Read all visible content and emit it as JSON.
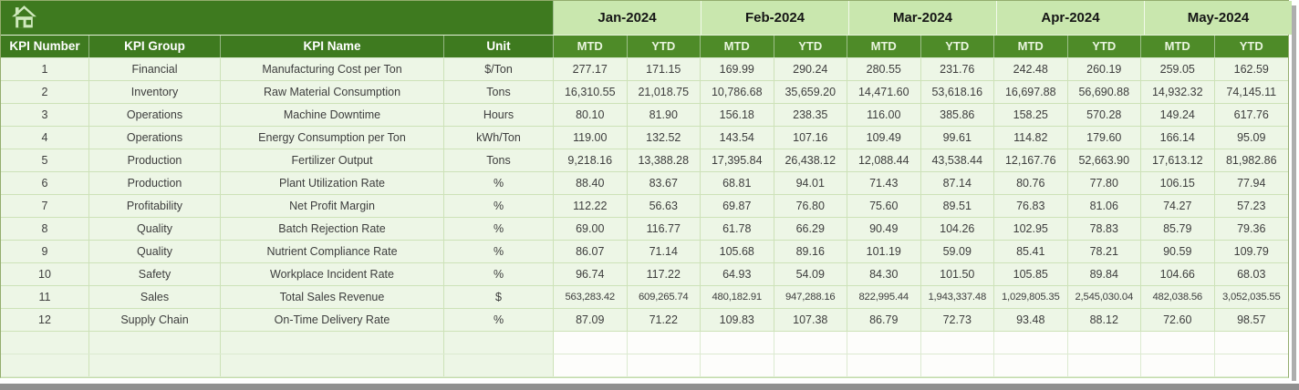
{
  "table": {
    "corner_headers": [
      "KPI Number",
      "KPI Group",
      "KPI Name",
      "Unit"
    ],
    "months": [
      "Jan-2024",
      "Feb-2024",
      "Mar-2024",
      "Apr-2024",
      "May-2024"
    ],
    "sub_headers": [
      "MTD",
      "YTD"
    ],
    "rows": [
      {
        "kpi_number": "1",
        "kpi_group": "Financial",
        "kpi_name": "Manufacturing Cost per Ton",
        "unit": "$/Ton",
        "values": [
          "277.17",
          "171.15",
          "169.99",
          "290.24",
          "280.55",
          "231.76",
          "242.48",
          "260.19",
          "259.05",
          "162.59"
        ]
      },
      {
        "kpi_number": "2",
        "kpi_group": "Inventory",
        "kpi_name": "Raw Material Consumption",
        "unit": "Tons",
        "values": [
          "16,310.55",
          "21,018.75",
          "10,786.68",
          "35,659.20",
          "14,471.60",
          "53,618.16",
          "16,697.88",
          "56,690.88",
          "14,932.32",
          "74,145.11"
        ]
      },
      {
        "kpi_number": "3",
        "kpi_group": "Operations",
        "kpi_name": "Machine Downtime",
        "unit": "Hours",
        "values": [
          "80.10",
          "81.90",
          "156.18",
          "238.35",
          "116.00",
          "385.86",
          "158.25",
          "570.28",
          "149.24",
          "617.76"
        ]
      },
      {
        "kpi_number": "4",
        "kpi_group": "Operations",
        "kpi_name": "Energy Consumption per Ton",
        "unit": "kWh/Ton",
        "values": [
          "119.00",
          "132.52",
          "143.54",
          "107.16",
          "109.49",
          "99.61",
          "114.82",
          "179.60",
          "166.14",
          "95.09"
        ]
      },
      {
        "kpi_number": "5",
        "kpi_group": "Production",
        "kpi_name": "Fertilizer Output",
        "unit": "Tons",
        "values": [
          "9,218.16",
          "13,388.28",
          "17,395.84",
          "26,438.12",
          "12,088.44",
          "43,538.44",
          "12,167.76",
          "52,663.90",
          "17,613.12",
          "81,982.86"
        ]
      },
      {
        "kpi_number": "6",
        "kpi_group": "Production",
        "kpi_name": "Plant Utilization Rate",
        "unit": "%",
        "values": [
          "88.40",
          "83.67",
          "68.81",
          "94.01",
          "71.43",
          "87.14",
          "80.76",
          "77.80",
          "106.15",
          "77.94"
        ]
      },
      {
        "kpi_number": "7",
        "kpi_group": "Profitability",
        "kpi_name": "Net Profit Margin",
        "unit": "%",
        "values": [
          "112.22",
          "56.63",
          "69.87",
          "76.80",
          "75.60",
          "89.51",
          "76.83",
          "81.06",
          "74.27",
          "57.23"
        ]
      },
      {
        "kpi_number": "8",
        "kpi_group": "Quality",
        "kpi_name": "Batch Rejection Rate",
        "unit": "%",
        "values": [
          "69.00",
          "116.77",
          "61.78",
          "66.29",
          "90.49",
          "104.26",
          "102.95",
          "78.83",
          "85.79",
          "79.36"
        ]
      },
      {
        "kpi_number": "9",
        "kpi_group": "Quality",
        "kpi_name": "Nutrient Compliance Rate",
        "unit": "%",
        "values": [
          "86.07",
          "71.14",
          "105.68",
          "89.16",
          "101.19",
          "59.09",
          "85.41",
          "78.21",
          "90.59",
          "109.79"
        ]
      },
      {
        "kpi_number": "10",
        "kpi_group": "Safety",
        "kpi_name": "Workplace Incident Rate",
        "unit": "%",
        "values": [
          "96.74",
          "117.22",
          "64.93",
          "54.09",
          "84.30",
          "101.50",
          "105.85",
          "89.84",
          "104.66",
          "68.03"
        ]
      },
      {
        "kpi_number": "11",
        "kpi_group": "Sales",
        "kpi_name": "Total Sales Revenue",
        "unit": "$",
        "values": [
          "563,283.42",
          "609,265.74",
          "480,182.91",
          "947,288.16",
          "822,995.44",
          "1,943,337.48",
          "1,029,805.35",
          "2,545,030.04",
          "482,038.56",
          "3,052,035.55"
        ]
      },
      {
        "kpi_number": "12",
        "kpi_group": "Supply Chain",
        "kpi_name": "On-Time Delivery Rate",
        "unit": "%",
        "values": [
          "87.09",
          "71.22",
          "109.83",
          "107.38",
          "86.79",
          "72.73",
          "93.48",
          "88.12",
          "72.60",
          "98.57"
        ]
      }
    ],
    "empty_row_count": 2
  },
  "icons": {
    "home": "home-icon"
  },
  "colors": {
    "header_dark_green": "#3e7a1f",
    "header_mid_green": "#4e8b28",
    "month_band_green": "#c9e7ae",
    "row_bg_green": "#edf6e6",
    "grid_green": "#cde2b8",
    "icon_green": "#cfe9bd"
  }
}
